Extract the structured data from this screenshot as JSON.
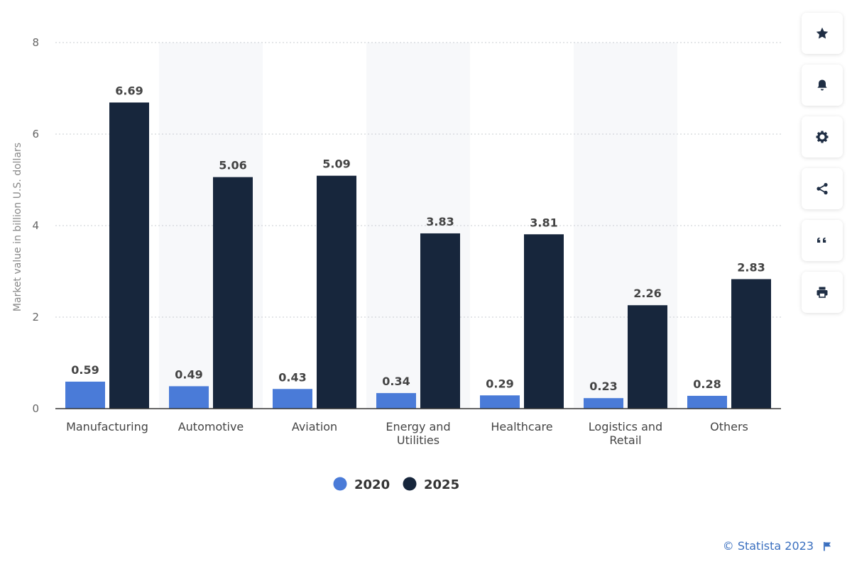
{
  "chart_data": {
    "type": "bar",
    "categories": [
      "Manufacturing",
      "Automotive",
      "Aviation",
      "Energy and Utilities",
      "Healthcare",
      "Logistics and Retail",
      "Others"
    ],
    "series": [
      {
        "name": "2020",
        "color": "#4a7bd8",
        "values": [
          0.59,
          0.49,
          0.43,
          0.34,
          0.29,
          0.23,
          0.28
        ],
        "labels": [
          "0.59",
          "0.49",
          "0.43",
          "0.34",
          "0.29",
          "0.23",
          "0.28"
        ]
      },
      {
        "name": "2025",
        "color": "#17263c",
        "values": [
          6.69,
          5.06,
          5.09,
          3.83,
          3.81,
          2.26,
          2.83
        ],
        "labels": [
          "6.69",
          "5.06",
          "5.09",
          "3.83",
          "3.81",
          "2.26",
          "2.83"
        ]
      }
    ],
    "ylabel": "Market value in billion U.S. dollars",
    "ylim": [
      0,
      8
    ],
    "yticks": [
      0,
      2,
      4,
      6,
      8
    ],
    "grid": true,
    "legend_position": "bottom-center"
  },
  "toolbar": {
    "buttons": [
      {
        "name": "favorite-button",
        "icon": "star-icon"
      },
      {
        "name": "notification-button",
        "icon": "bell-icon"
      },
      {
        "name": "settings-button",
        "icon": "gear-icon"
      },
      {
        "name": "share-button",
        "icon": "share-icon"
      },
      {
        "name": "cite-button",
        "icon": "quote-icon"
      },
      {
        "name": "print-button",
        "icon": "printer-icon"
      }
    ]
  },
  "credit": {
    "text": "© Statista 2023",
    "icon": "flag-icon",
    "color": "#3a6fbf"
  }
}
